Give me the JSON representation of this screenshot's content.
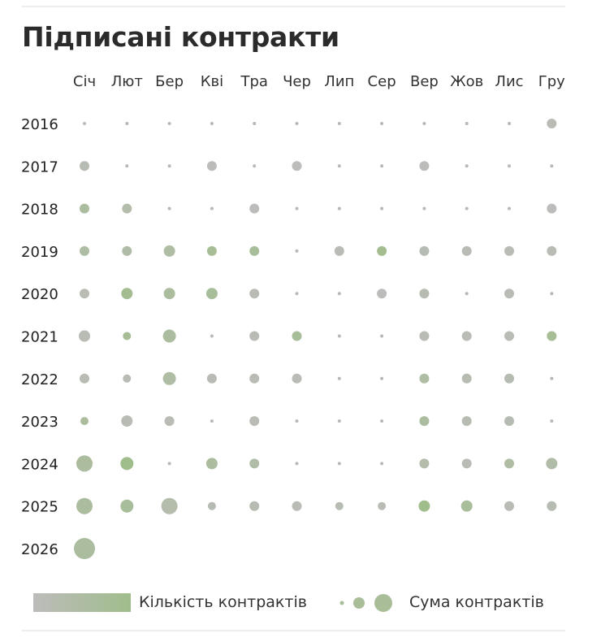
{
  "title": "Підписані контракти",
  "colors": {
    "low_count": "#bcbcba",
    "high_count": "#a0bd8c"
  },
  "chart_data": {
    "type": "bubble-grid",
    "title": "Підписані контракти",
    "months": [
      "Січ",
      "Лют",
      "Бер",
      "Кві",
      "Тра",
      "Чер",
      "Лип",
      "Сер",
      "Вер",
      "Жов",
      "Лис",
      "Гру"
    ],
    "years": [
      "2016",
      "2017",
      "2018",
      "2019",
      "2020",
      "2021",
      "2022",
      "2023",
      "2024",
      "2025",
      "2026"
    ],
    "size_meaning": "Сума контрактів (relative level 0–7)",
    "color_meaning": "Кількість контрактів (relative 0–1)",
    "rows": [
      {
        "year": "2016",
        "size": [
          0,
          0,
          0,
          0,
          0,
          0,
          0,
          0,
          0,
          0,
          0,
          3
        ],
        "count": [
          0,
          0,
          0,
          0,
          0,
          0,
          0,
          0,
          0,
          0,
          0,
          0.1
        ]
      },
      {
        "year": "2017",
        "size": [
          3,
          0,
          0,
          3,
          0,
          3,
          0,
          0,
          3,
          0,
          0,
          0
        ],
        "count": [
          0.2,
          0,
          0,
          0,
          0,
          0,
          0,
          0,
          0,
          0,
          0,
          0
        ]
      },
      {
        "year": "2018",
        "size": [
          3,
          3,
          0,
          0,
          3,
          0,
          0,
          0,
          0,
          0,
          0,
          3
        ],
        "count": [
          0.6,
          0.3,
          0,
          0,
          0,
          0,
          0,
          0,
          0,
          0,
          0,
          0
        ]
      },
      {
        "year": "2019",
        "size": [
          3,
          3,
          4,
          3,
          3,
          0,
          3,
          3,
          3,
          3,
          3,
          3
        ],
        "count": [
          0.5,
          0.4,
          0.5,
          0.8,
          0.7,
          0,
          0.1,
          0.9,
          0.2,
          0.1,
          0.1,
          0.1
        ]
      },
      {
        "year": "2020",
        "size": [
          3,
          4,
          4,
          4,
          3,
          0,
          0,
          3,
          3,
          0,
          3,
          0
        ],
        "count": [
          0.1,
          0.9,
          0.6,
          0.7,
          0.1,
          0,
          0,
          0,
          0.2,
          0,
          0.1,
          0
        ]
      },
      {
        "year": "2021",
        "size": [
          4,
          2,
          5,
          0,
          3,
          3,
          0,
          0,
          3,
          3,
          3,
          3
        ],
        "count": [
          0.1,
          0.8,
          0.6,
          0,
          0.1,
          0.7,
          0,
          0,
          0.1,
          0.1,
          0.1,
          0.8
        ]
      },
      {
        "year": "2022",
        "size": [
          3,
          2,
          5,
          3,
          3,
          3,
          0,
          0,
          3,
          3,
          3,
          0
        ],
        "count": [
          0.1,
          0.1,
          0.5,
          0.1,
          0.1,
          0.1,
          0,
          0,
          0.5,
          0.2,
          0.2,
          0
        ]
      },
      {
        "year": "2023",
        "size": [
          2,
          4,
          3,
          0,
          3,
          0,
          0,
          0,
          3,
          3,
          3,
          0
        ],
        "count": [
          0.6,
          0.1,
          0.1,
          0,
          0.1,
          0,
          0,
          0,
          0.6,
          0.2,
          0.2,
          0
        ]
      },
      {
        "year": "2024",
        "size": [
          6,
          5,
          0,
          4,
          3,
          0,
          0,
          0,
          3,
          3,
          3,
          4
        ],
        "count": [
          0.6,
          1,
          0,
          0.6,
          0.4,
          0,
          0,
          0,
          0.3,
          0.1,
          0.5,
          0.4
        ]
      },
      {
        "year": "2025",
        "size": [
          6,
          5,
          6,
          2,
          3,
          3,
          2,
          2,
          4,
          4,
          3,
          3
        ],
        "count": [
          0.6,
          0.7,
          0.3,
          0.2,
          0.2,
          0.1,
          0.2,
          0.1,
          1,
          0.7,
          0.1,
          0.2
        ]
      },
      {
        "year": "2026",
        "size": [
          7
        ],
        "count": [
          0.6
        ]
      }
    ],
    "legend": {
      "color_label": "Кількість контрактів",
      "size_label": "Сума контрактів",
      "placement": "bottom"
    }
  }
}
